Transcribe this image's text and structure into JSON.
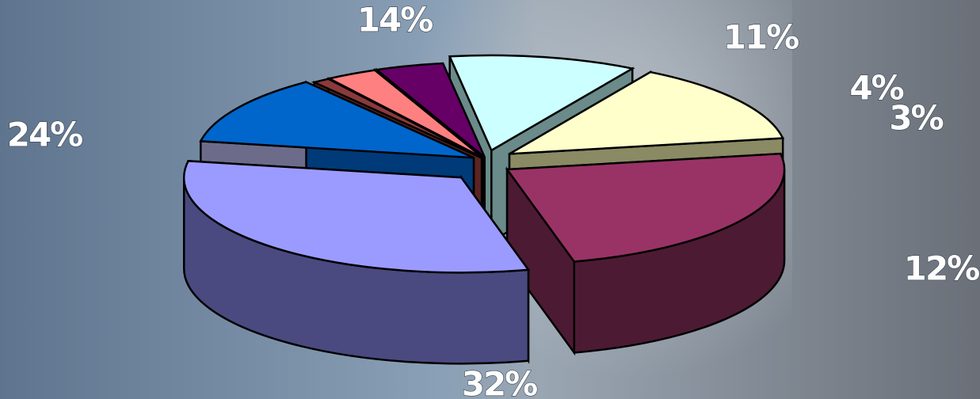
{
  "chart_data": {
    "type": "pie",
    "style": "3d-exploded",
    "title": "",
    "legend": "none",
    "slices": [
      {
        "label": "32%",
        "value": 32,
        "color": "#9b9bff",
        "side_color": "#4a4a80"
      },
      {
        "label": "12%",
        "value": 12,
        "color": "#0066cc",
        "side_color": "#6c6c8a",
        "end_color": "#003a78"
      },
      {
        "label": "",
        "value": 1,
        "color": "#8a3a3a",
        "side_color": "#5a2424"
      },
      {
        "label": "3%",
        "value": 3,
        "color": "#ff8080",
        "side_color": "#8a4040"
      },
      {
        "label": "4%",
        "value": 4,
        "color": "#660066",
        "side_color": "#3a003a"
      },
      {
        "label": "11%",
        "value": 11,
        "color": "#ccffff",
        "side_color": "#6b8a8a"
      },
      {
        "label": "14%",
        "value": 14,
        "color": "#ffffcc",
        "side_color": "#8a8a64"
      },
      {
        "label": "24%",
        "value": 24,
        "color": "#993366",
        "side_color": "#4d1a33"
      }
    ]
  }
}
